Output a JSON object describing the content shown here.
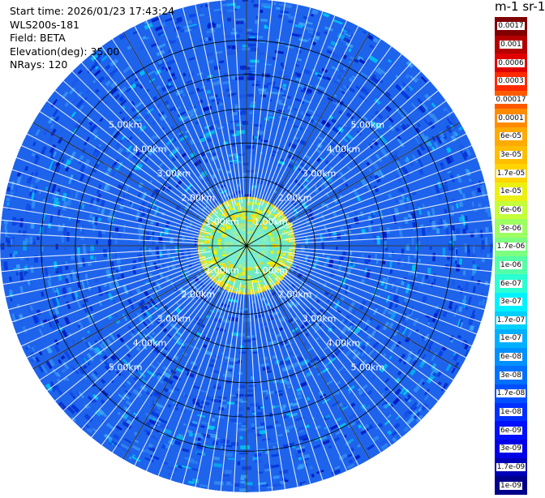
{
  "info": {
    "start_time": "Start time: 2026/01/23 17:43:24",
    "station": "WLS200s-181",
    "field": "Field: BETA",
    "elevation": "Elevation(deg): 35.00",
    "nrays": "NRays: 120"
  },
  "colorbar": {
    "title": "m-1 sr-1",
    "labels": [
      "0.0017",
      "0.001",
      "0.0006",
      "0.0003",
      "0.00017",
      "0.0001",
      "6e-05",
      "3e-05",
      "1.7e-05",
      "1e-05",
      "6e-06",
      "3e-06",
      "1.7e-06",
      "1e-06",
      "6e-07",
      "3e-07",
      "1.7e-07",
      "1e-07",
      "6e-08",
      "3e-08",
      "1.7e-08",
      "1e-08",
      "6e-09",
      "3e-09",
      "1.7e-09",
      "1e-09"
    ],
    "colors": [
      "#800000",
      "#b40000",
      "#e00000",
      "#ff2a00",
      "#ff5a00",
      "#ff8c00",
      "#ffaa00",
      "#ffbe00",
      "#ffd400",
      "#ecef12",
      "#c4ff3a",
      "#9cff62",
      "#7cff80",
      "#55ffa8",
      "#2affd3",
      "#00f2ff",
      "#00d0ff",
      "#00b0ff",
      "#0090ff",
      "#0070ff",
      "#0050ff",
      "#0030ff",
      "#0010ff",
      "#0000e8",
      "#0000b8",
      "#00008a"
    ]
  },
  "plot": {
    "rings": [
      {
        "label": "1.00km",
        "km": 1
      },
      {
        "label": "2.00km",
        "km": 2
      },
      {
        "label": "3.00km",
        "km": 3
      },
      {
        "label": "4.00km",
        "km": 4
      },
      {
        "label": "5.00km",
        "km": 5
      }
    ],
    "max_range_km": 7.2,
    "n_rays": 120,
    "background_color": "#1d63ec",
    "center_field_colors": [
      "#b4f050",
      "#e8ea28",
      "#68f0b4",
      "#f6f000",
      "#ffd400"
    ]
  }
}
